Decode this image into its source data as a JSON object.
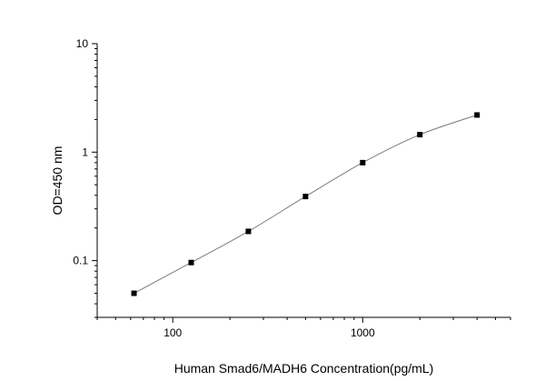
{
  "chart_data": {
    "type": "scatter",
    "title": "",
    "xlabel": "Human Smad6/MADH6 Concentration(pg/mL)",
    "ylabel": "OD=450 nm",
    "xscale": "log",
    "yscale": "log",
    "xlim": [
      40,
      6000
    ],
    "ylim": [
      0.03,
      10
    ],
    "x_ticks": [
      {
        "value": 100,
        "label": "100"
      },
      {
        "value": 1000,
        "label": "1000"
      }
    ],
    "y_ticks": [
      {
        "value": 0.1,
        "label": "0.1"
      },
      {
        "value": 1,
        "label": "1"
      },
      {
        "value": 10,
        "label": "10"
      }
    ],
    "grid": false,
    "series": [
      {
        "marker": "square",
        "line": "fitted-curve",
        "points": [
          {
            "x": 62.5,
            "y": 0.05
          },
          {
            "x": 125,
            "y": 0.096
          },
          {
            "x": 250,
            "y": 0.186
          },
          {
            "x": 500,
            "y": 0.39
          },
          {
            "x": 1000,
            "y": 0.8
          },
          {
            "x": 2000,
            "y": 1.45
          },
          {
            "x": 4000,
            "y": 2.2
          }
        ]
      }
    ],
    "colors": {
      "points": "#000000",
      "curve": "#7a7a7a",
      "axes": "#000000"
    }
  }
}
